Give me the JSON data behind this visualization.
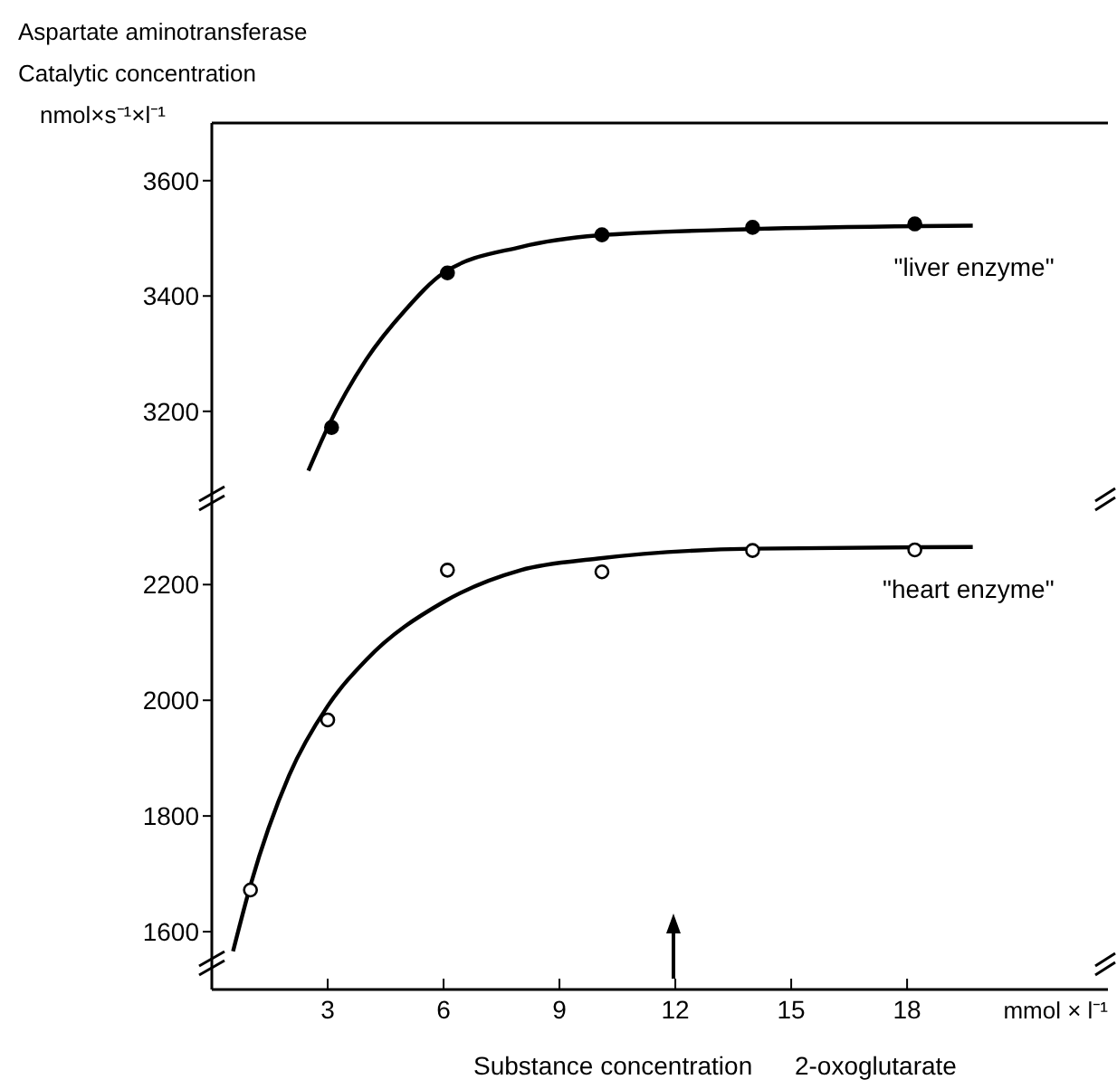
{
  "chart_data": [
    {
      "type": "line",
      "ylabel": "Aspartate aminotransferase\nCatalytic concentration\nnmol×s⁻¹×l⁻¹",
      "xlim": [
        0,
        23.2
      ],
      "ylim": [
        3060,
        3700
      ],
      "yticks": [
        3200,
        3400,
        3600
      ],
      "tick_labels": "y",
      "series": [
        {
          "type": "scatter",
          "marker": "circle",
          "color": "#000000",
          "x": [
            3.1,
            6.1,
            10.1,
            14,
            18.2
          ],
          "values": [
            3172,
            3440,
            3506,
            3519,
            3525
          ]
        },
        {
          "name": "\"liver enzyme\"",
          "marker": "none",
          "color": "#000000",
          "x": [
            2.5,
            3,
            4,
            5,
            6,
            8,
            10,
            14,
            19.7
          ],
          "values": [
            3097,
            3172,
            3290,
            3375,
            3440,
            3485,
            3505,
            3516,
            3522
          ]
        }
      ]
    },
    {
      "type": "line",
      "xlabel": "Substance concentration      2-oxoglutarate",
      "annotations": [
        "mmol × l⁻¹"
      ],
      "xlim": [
        0,
        23.2
      ],
      "xticks": [
        3,
        6,
        9,
        12,
        15,
        18
      ],
      "ylim": [
        1500,
        2360
      ],
      "yticks": [
        1600,
        1800,
        2000,
        2200
      ],
      "series": [
        {
          "type": "scatter",
          "marker": "circle",
          "color": "#000000",
          "x": [
            1,
            3,
            6.1,
            10.1,
            14,
            18.2
          ],
          "values": [
            1672,
            1966,
            2225,
            2222,
            2259,
            2260
          ]
        },
        {
          "name": "\"heart enzyme\"",
          "marker": "none",
          "color": "#000000",
          "x": [
            0.55,
            1,
            2,
            3,
            4,
            6,
            8,
            10,
            14,
            19.7
          ],
          "values": [
            1566,
            1680,
            1870,
            1990,
            2070,
            2170,
            2225,
            2245,
            2262,
            2265
          ]
        }
      ]
    }
  ]
}
